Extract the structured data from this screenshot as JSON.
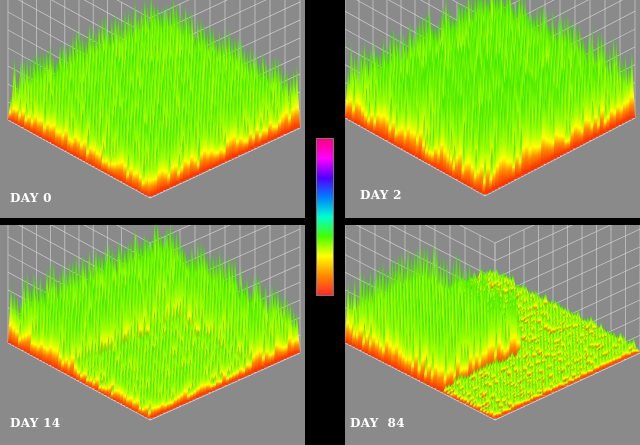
{
  "panels": [
    {
      "id": "p0",
      "label": "DAY 0"
    },
    {
      "id": "p2",
      "label": "DAY 2"
    },
    {
      "id": "p14",
      "label": "DAY 14"
    },
    {
      "id": "p84",
      "label": "DAY  84"
    }
  ],
  "colors": {
    "background": "#000000",
    "panel": "#8a8a8a",
    "grid": "#d8d8d8",
    "colorbar_stops": [
      "#ff2a2a",
      "#ff8a00",
      "#ffff00",
      "#44ff00",
      "#00ffd0",
      "#0080ff",
      "#5000ff",
      "#ff00ff",
      "#ff0080"
    ]
  }
}
